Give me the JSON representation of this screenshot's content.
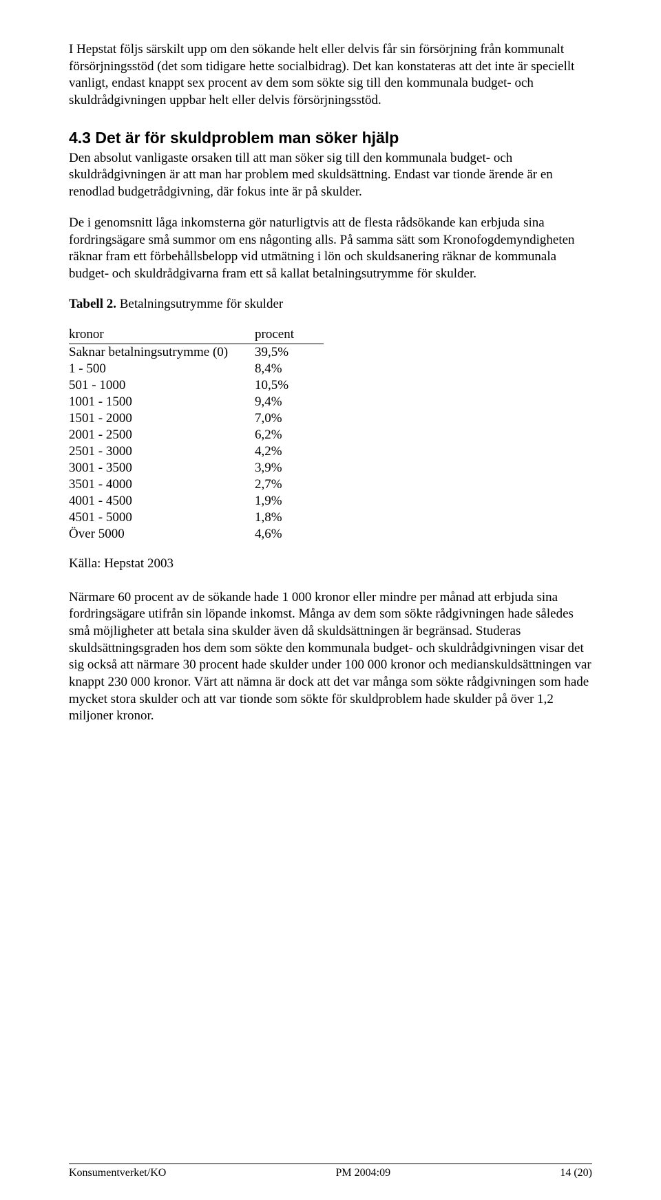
{
  "paragraphs": {
    "p1": "I Hepstat följs särskilt upp om den sökande helt eller delvis får sin försörjning från kommunalt försörjningsstöd (det som tidigare hette socialbidrag). Det kan konstateras att det inte är speciellt vanligt, endast knappt sex procent av dem som sökte sig till den kommunala budget- och skuldrådgivningen uppbar helt eller delvis försörjningsstöd.",
    "heading": "4.3 Det är för skuldproblem man söker hjälp",
    "p2": "Den absolut vanligaste orsaken till att man söker sig till den kommunala budget- och skuldrådgivningen är att man har problem med skuldsättning. Endast var tionde ärende är en renodlad budgetrådgivning, där fokus inte är på skulder.",
    "p3": "De i genomsnitt låga inkomsterna gör naturligtvis att de flesta rådsökande kan erbjuda sina fordringsägare små summor om ens någonting alls. På samma sätt som Kronofogdemyndigheten räknar fram ett förbehållsbelopp vid utmätning i lön och skuldsanering räknar de kommunala budget- och skuldrådgivarna fram ett så kallat betalningsutrymme för skulder.",
    "table_title_bold": "Tabell 2.",
    "table_title_rest": " Betalningsutrymme för skulder",
    "p4": "Närmare 60 procent av de sökande hade 1 000 kronor eller mindre per månad att erbjuda sina fordringsägare utifrån sin löpande inkomst. Många av dem som sökte rådgivningen hade således små möjligheter att betala sina skulder även då skuldsättningen är begränsad. Studeras skuldsättningsgraden hos dem som sökte den kommunala budget- och skuldrådgivningen visar det sig också att närmare 30 procent hade skulder under 100 000 kronor och medianskuldsättningen var knappt 230 000 kronor. Värt att nämna är dock att det var många som sökte rådgivningen som hade mycket stora skulder och att var tionde som sökte för skuldproblem hade skulder på över 1,2 miljoner kronor."
  },
  "table": {
    "col1_header": "kronor",
    "col2_header": "procent",
    "rows": [
      {
        "label": "Saknar betalningsutrymme (0)",
        "value": "39,5%"
      },
      {
        "label": "1 - 500",
        "value": "8,4%"
      },
      {
        "label": "501 - 1000",
        "value": "10,5%"
      },
      {
        "label": "1001 - 1500",
        "value": "9,4%"
      },
      {
        "label": "1501 - 2000",
        "value": "7,0%"
      },
      {
        "label": "2001 - 2500",
        "value": "6,2%"
      },
      {
        "label": "2501 - 3000",
        "value": "4,2%"
      },
      {
        "label": "3001 - 3500",
        "value": "3,9%"
      },
      {
        "label": "3501 - 4000",
        "value": "2,7%"
      },
      {
        "label": "4001 - 4500",
        "value": "1,9%"
      },
      {
        "label": "4501 - 5000",
        "value": "1,8%"
      },
      {
        "label": "Över 5000",
        "value": "4,6%"
      }
    ]
  },
  "source": "Källa: Hepstat 2003",
  "footer": {
    "left": "Konsumentverket/KO",
    "center": "PM 2004:09",
    "right": "14 (20)"
  }
}
